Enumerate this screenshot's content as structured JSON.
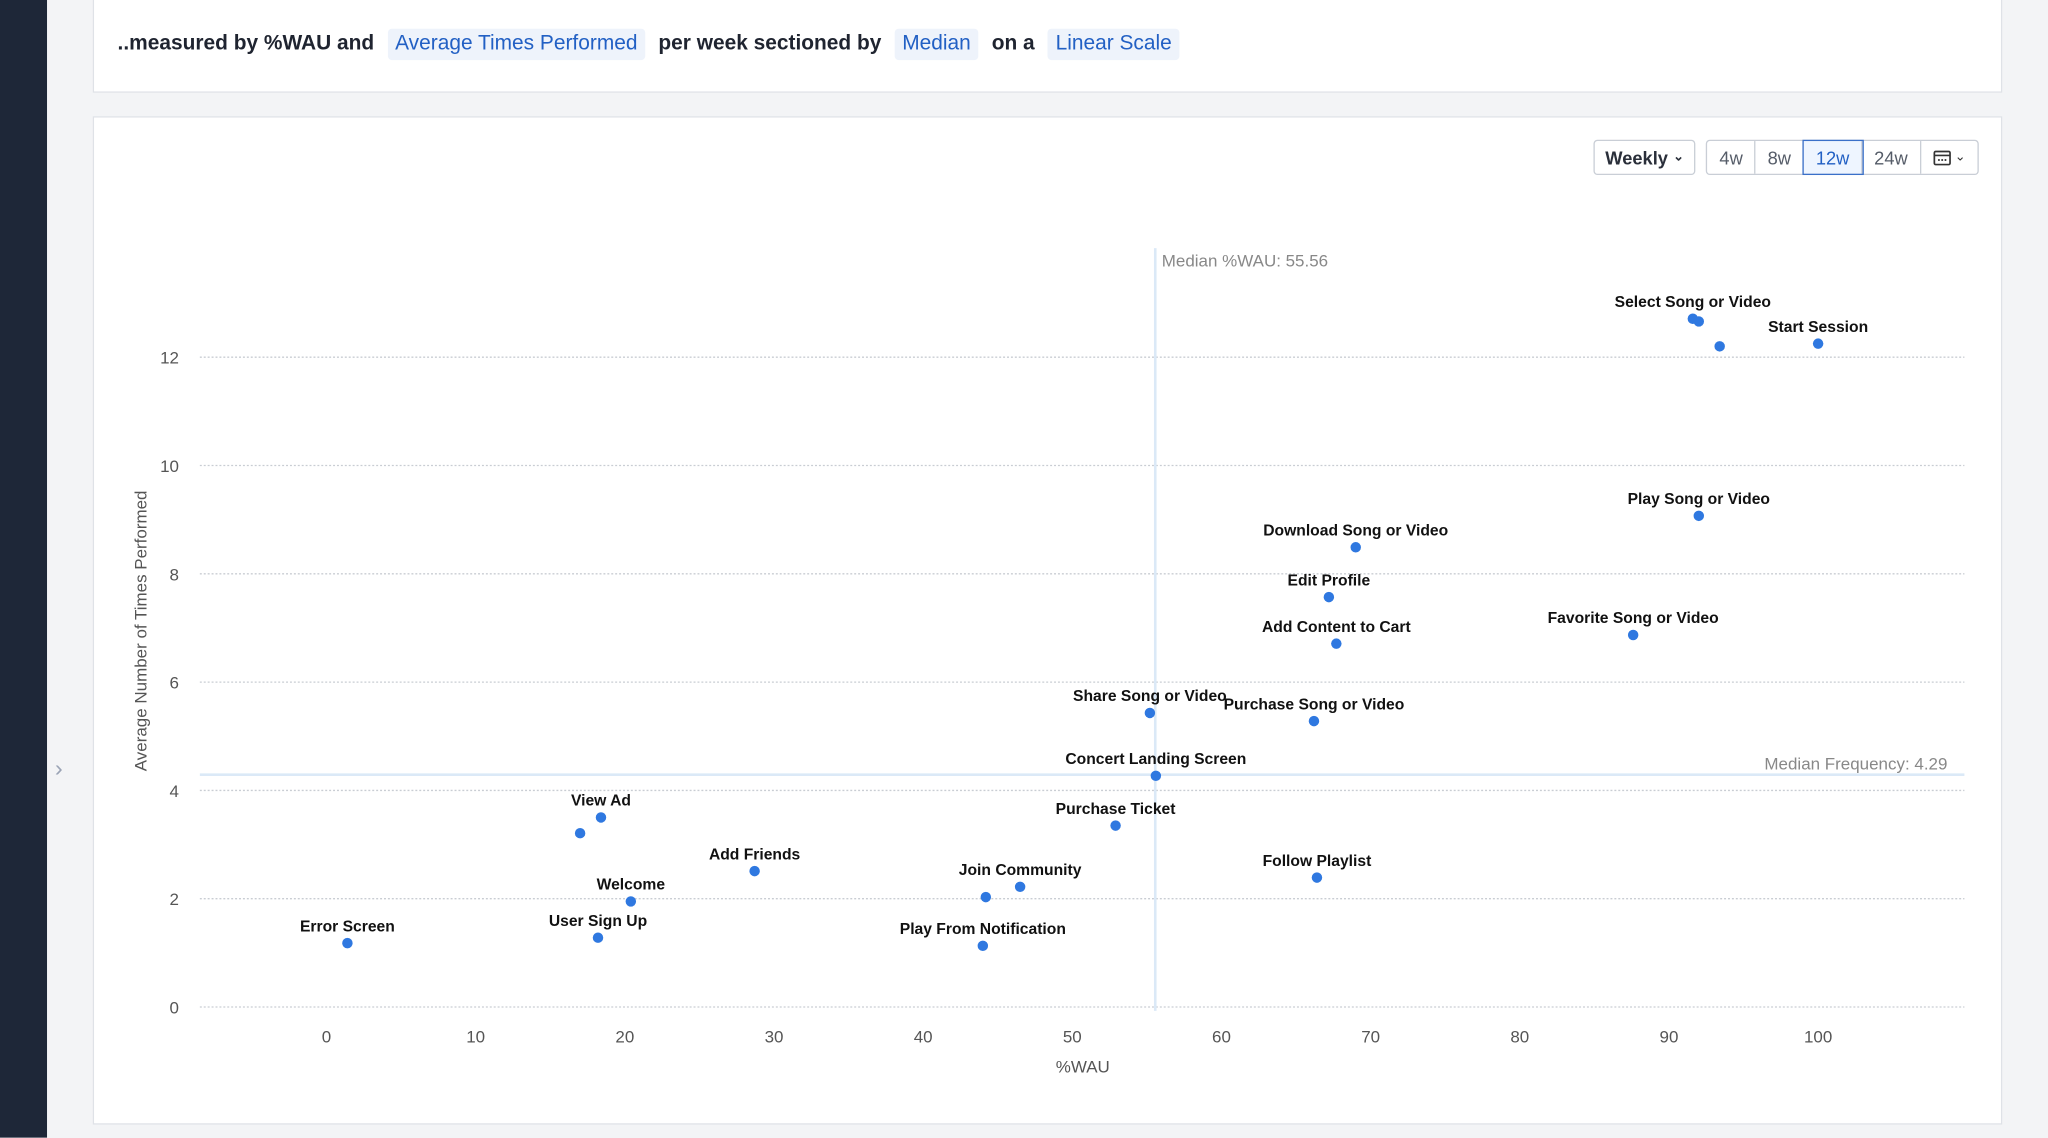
{
  "query": {
    "prefix": "..measured by %WAU and",
    "metric": "Average Times Performed",
    "middle": "per week sectioned by",
    "section": "Median",
    "on": "on a",
    "scale": "Linear Scale"
  },
  "controls": {
    "interval": "Weekly",
    "ranges": [
      "4w",
      "8w",
      "12w",
      "24w"
    ],
    "active_range": "12w",
    "calendar_icon": "calendar-icon"
  },
  "colors": {
    "point": "#2f78e0",
    "median_line": "#dbe9f7",
    "sidebar": "#1e2738",
    "accent": "#2260c4"
  },
  "chart_data": {
    "type": "scatter",
    "xlabel": "%WAU",
    "ylabel": "Average Number of Times Performed",
    "xlim": [
      -8.5,
      109
    ],
    "ylim": [
      0,
      12.5
    ],
    "xticks": [
      "0",
      "10",
      "20",
      "30",
      "40",
      "50",
      "60",
      "70",
      "80",
      "90",
      "100"
    ],
    "yticks": [
      "0",
      "2",
      "4",
      "6",
      "8",
      "10",
      "12"
    ],
    "grid": true,
    "median_x": {
      "value": 55.56,
      "label": "Median %WAU: 55.56"
    },
    "median_y": {
      "value": 4.29,
      "label": "Median Frequency: 4.29"
    },
    "points": [
      {
        "label": "Select Song or Video",
        "x": 91.6,
        "y": 12.71
      },
      {
        "label": "",
        "x": 92.0,
        "y": 12.66
      },
      {
        "label": "",
        "x": 93.4,
        "y": 12.2
      },
      {
        "label": "Start Session",
        "x": 100,
        "y": 12.25
      },
      {
        "label": "Play Song or Video",
        "x": 92.0,
        "y": 9.07
      },
      {
        "label": "Download Song or Video",
        "x": 69.0,
        "y": 8.49
      },
      {
        "label": "Edit Profile",
        "x": 67.2,
        "y": 7.57
      },
      {
        "label": "Add Content to Cart",
        "x": 67.7,
        "y": 6.71
      },
      {
        "label": "Favorite Song or Video",
        "x": 87.6,
        "y": 6.87
      },
      {
        "label": "Share Song or Video",
        "x": 55.2,
        "y": 5.43
      },
      {
        "label": "Purchase Song or Video",
        "x": 66.2,
        "y": 5.28
      },
      {
        "label": "Concert Landing Screen",
        "x": 55.6,
        "y": 4.27
      },
      {
        "label": "Purchase Ticket",
        "x": 52.9,
        "y": 3.35
      },
      {
        "label": "Follow Playlist",
        "x": 66.4,
        "y": 2.39
      },
      {
        "label": "View Ad",
        "x": 18.4,
        "y": 3.5
      },
      {
        "label": "",
        "x": 17.0,
        "y": 3.21
      },
      {
        "label": "Add Friends",
        "x": 28.7,
        "y": 2.51
      },
      {
        "label": "Join Community",
        "x": 46.5,
        "y": 2.22
      },
      {
        "label": "",
        "x": 44.2,
        "y": 2.03
      },
      {
        "label": "Welcome",
        "x": 20.4,
        "y": 1.95
      },
      {
        "label": "Play From Notification",
        "x": 44.0,
        "y": 1.13
      },
      {
        "label": "User Sign Up",
        "x": 18.2,
        "y": 1.28
      },
      {
        "label": "Error Screen",
        "x": 1.4,
        "y": 1.18
      }
    ]
  }
}
